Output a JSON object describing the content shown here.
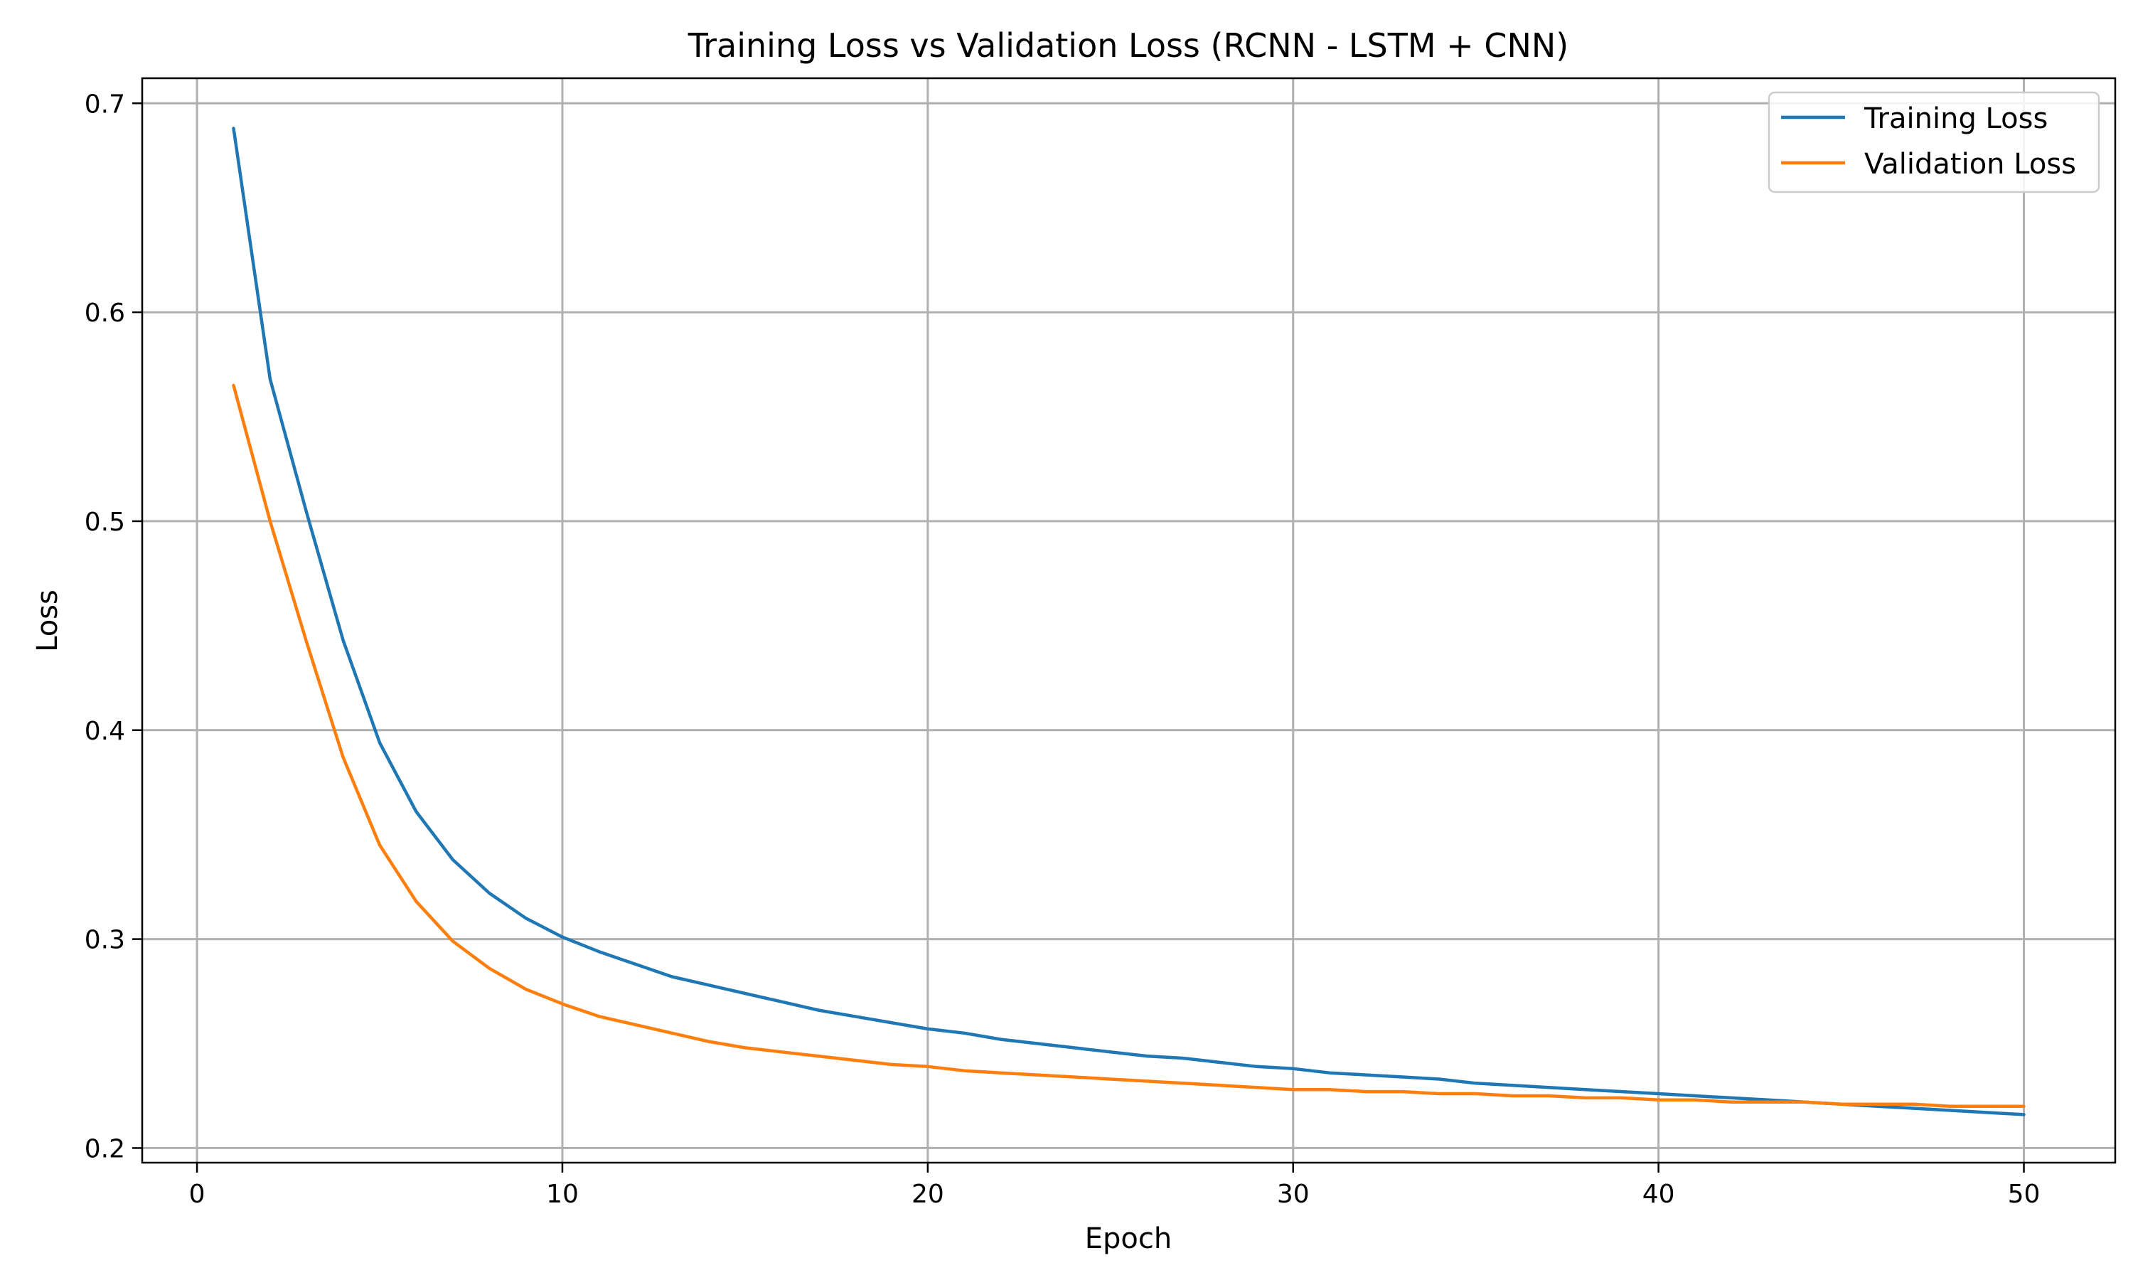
{
  "chart_data": {
    "type": "line",
    "title": "Training Loss vs Validation Loss (RCNN - LSTM + CNN)",
    "xlabel": "Epoch",
    "ylabel": "Loss",
    "xlim": [
      -1.5,
      52.5
    ],
    "ylim": [
      0.193,
      0.712
    ],
    "xticks": [
      0,
      10,
      20,
      30,
      40,
      50
    ],
    "yticks": [
      0.2,
      0.3,
      0.4,
      0.5,
      0.6,
      0.7
    ],
    "xtick_labels": [
      "0",
      "10",
      "20",
      "30",
      "40",
      "50"
    ],
    "ytick_labels": [
      "0.2",
      "0.3",
      "0.4",
      "0.5",
      "0.6",
      "0.7"
    ],
    "grid": true,
    "legend_position": "top-right",
    "x": [
      1,
      2,
      3,
      4,
      5,
      6,
      7,
      8,
      9,
      10,
      11,
      12,
      13,
      14,
      15,
      16,
      17,
      18,
      19,
      20,
      21,
      22,
      23,
      24,
      25,
      26,
      27,
      28,
      29,
      30,
      31,
      32,
      33,
      34,
      35,
      36,
      37,
      38,
      39,
      40,
      41,
      42,
      43,
      44,
      45,
      46,
      47,
      48,
      49,
      50
    ],
    "series": [
      {
        "name": "Training Loss",
        "color": "#1f77b4",
        "values": [
          0.688,
          0.568,
          0.504,
          0.443,
          0.394,
          0.361,
          0.338,
          0.322,
          0.31,
          0.301,
          0.294,
          0.288,
          0.282,
          0.278,
          0.274,
          0.27,
          0.266,
          0.263,
          0.26,
          0.257,
          0.255,
          0.252,
          0.25,
          0.248,
          0.246,
          0.244,
          0.243,
          0.241,
          0.239,
          0.238,
          0.236,
          0.235,
          0.234,
          0.233,
          0.231,
          0.23,
          0.229,
          0.228,
          0.227,
          0.226,
          0.225,
          0.224,
          0.223,
          0.222,
          0.221,
          0.22,
          0.219,
          0.218,
          0.217,
          0.216
        ]
      },
      {
        "name": "Validation Loss",
        "color": "#ff7f0e",
        "values": [
          0.565,
          0.5,
          0.442,
          0.387,
          0.345,
          0.318,
          0.299,
          0.286,
          0.276,
          0.269,
          0.263,
          0.259,
          0.255,
          0.251,
          0.248,
          0.246,
          0.244,
          0.242,
          0.24,
          0.239,
          0.237,
          0.236,
          0.235,
          0.234,
          0.233,
          0.232,
          0.231,
          0.23,
          0.229,
          0.228,
          0.228,
          0.227,
          0.227,
          0.226,
          0.226,
          0.225,
          0.225,
          0.224,
          0.224,
          0.223,
          0.223,
          0.222,
          0.222,
          0.222,
          0.221,
          0.221,
          0.221,
          0.22,
          0.22,
          0.22
        ]
      }
    ]
  }
}
